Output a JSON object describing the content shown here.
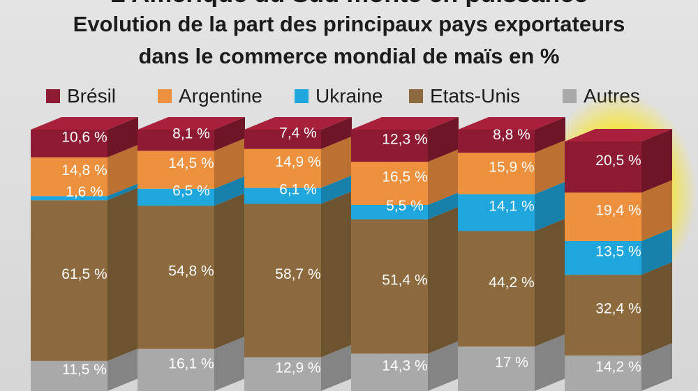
{
  "header": {
    "title_partial": "L'Amérique du Sud monte en puissance",
    "subtitle_line1": "Evolution de la part des principaux pays exportateurs",
    "subtitle_line2": "dans le commerce mondial de maïs en %"
  },
  "legend": [
    {
      "name": "Brésil",
      "color": "#8e1b33"
    },
    {
      "name": "Argentine",
      "color": "#ee913f"
    },
    {
      "name": "Ukraine",
      "color": "#1ea6dd"
    },
    {
      "name": "Etats-Unis",
      "color": "#8c6a3e"
    },
    {
      "name": "Autres",
      "color": "#a9a9a9"
    }
  ],
  "chart_data": {
    "type": "bar",
    "stacked": true,
    "title": "Evolution de la part des principaux pays exportateurs dans le commerce mondial de maïs en %",
    "categories": [
      "",
      "",
      "",
      "",
      "",
      ""
    ],
    "series": [
      {
        "name": "Autres",
        "values": [
          11.5,
          16.1,
          12.9,
          14.3,
          17,
          14.2
        ],
        "labels": [
          "11,5 %",
          "16,1 %",
          "12,9 %",
          "14,3 %",
          "17 %",
          "14,2 %"
        ],
        "color": "#a9a9a9"
      },
      {
        "name": "Etats-Unis",
        "values": [
          61.5,
          54.8,
          58.7,
          51.4,
          44.2,
          32.4
        ],
        "labels": [
          "61,5 %",
          "54,8 %",
          "58,7 %",
          "51,4 %",
          "44,2 %",
          "32,4 %"
        ],
        "color": "#8c6a3e"
      },
      {
        "name": "Ukraine",
        "values": [
          1.6,
          6.5,
          6.1,
          5.5,
          14.1,
          13.5
        ],
        "labels": [
          "1,6 %",
          "6,5 %",
          "6,1 %",
          "5,5 %",
          "14,1 %",
          "13,5 %"
        ],
        "color": "#1ea6dd"
      },
      {
        "name": "Argentine",
        "values": [
          14.8,
          14.5,
          14.9,
          16.5,
          15.9,
          19.4
        ],
        "labels": [
          "14,8 %",
          "14,5 %",
          "14,9 %",
          "16,5 %",
          "15,9 %",
          "19,4 %"
        ],
        "color": "#ee913f"
      },
      {
        "name": "Brésil",
        "values": [
          10.6,
          8.1,
          7.4,
          12.3,
          8.8,
          20.5
        ],
        "labels": [
          "10,6 %",
          "8,1 %",
          "7,4 %",
          "12,3 %",
          "8,8 %",
          "20,5 %"
        ],
        "color": "#8e1b33"
      }
    ],
    "highlighted_bar": 5,
    "highlight_color": "#ffe600",
    "legend_position": "top",
    "grid": false
  }
}
